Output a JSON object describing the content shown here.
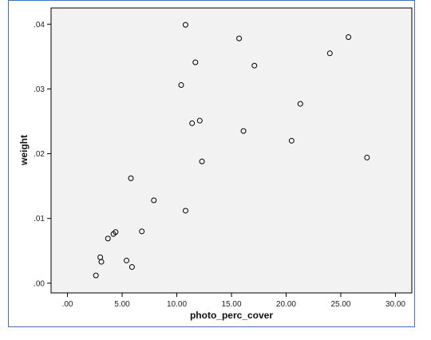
{
  "chart_data": {
    "type": "scatter",
    "title": "",
    "xlabel": "photo_perc_cover",
    "ylabel": "weight",
    "xlim": [
      -1.5,
      31.5
    ],
    "ylim": [
      -0.0015,
      0.0425
    ],
    "x_ticks": [
      0,
      5,
      10,
      15,
      20,
      25,
      30
    ],
    "x_tick_labels": [
      ".00",
      "5.00",
      "10.00",
      "15.00",
      "20.00",
      "25.00",
      "30.00"
    ],
    "y_ticks": [
      0,
      0.01,
      0.02,
      0.03,
      0.04
    ],
    "y_tick_labels": [
      ".00",
      ".01",
      ".02",
      ".03",
      ".04"
    ],
    "grid": false,
    "plot_background": "#f2f2f2",
    "marker_color": "#000000",
    "points": [
      {
        "x": 2.6,
        "y": 0.0012
      },
      {
        "x": 3.0,
        "y": 0.004
      },
      {
        "x": 3.1,
        "y": 0.0033
      },
      {
        "x": 3.7,
        "y": 0.0069
      },
      {
        "x": 4.2,
        "y": 0.0076
      },
      {
        "x": 4.4,
        "y": 0.0079
      },
      {
        "x": 5.4,
        "y": 0.0035
      },
      {
        "x": 5.8,
        "y": 0.0162
      },
      {
        "x": 5.9,
        "y": 0.0025
      },
      {
        "x": 6.8,
        "y": 0.008
      },
      {
        "x": 7.9,
        "y": 0.0128
      },
      {
        "x": 10.4,
        "y": 0.0306
      },
      {
        "x": 10.8,
        "y": 0.0399
      },
      {
        "x": 10.8,
        "y": 0.0112
      },
      {
        "x": 11.4,
        "y": 0.0247
      },
      {
        "x": 11.7,
        "y": 0.0341
      },
      {
        "x": 12.1,
        "y": 0.0251
      },
      {
        "x": 12.3,
        "y": 0.0188
      },
      {
        "x": 15.7,
        "y": 0.0378
      },
      {
        "x": 16.1,
        "y": 0.0235
      },
      {
        "x": 17.1,
        "y": 0.0336
      },
      {
        "x": 20.5,
        "y": 0.022
      },
      {
        "x": 21.3,
        "y": 0.0277
      },
      {
        "x": 24.0,
        "y": 0.0355
      },
      {
        "x": 25.7,
        "y": 0.038
      },
      {
        "x": 27.4,
        "y": 0.0194
      }
    ]
  }
}
